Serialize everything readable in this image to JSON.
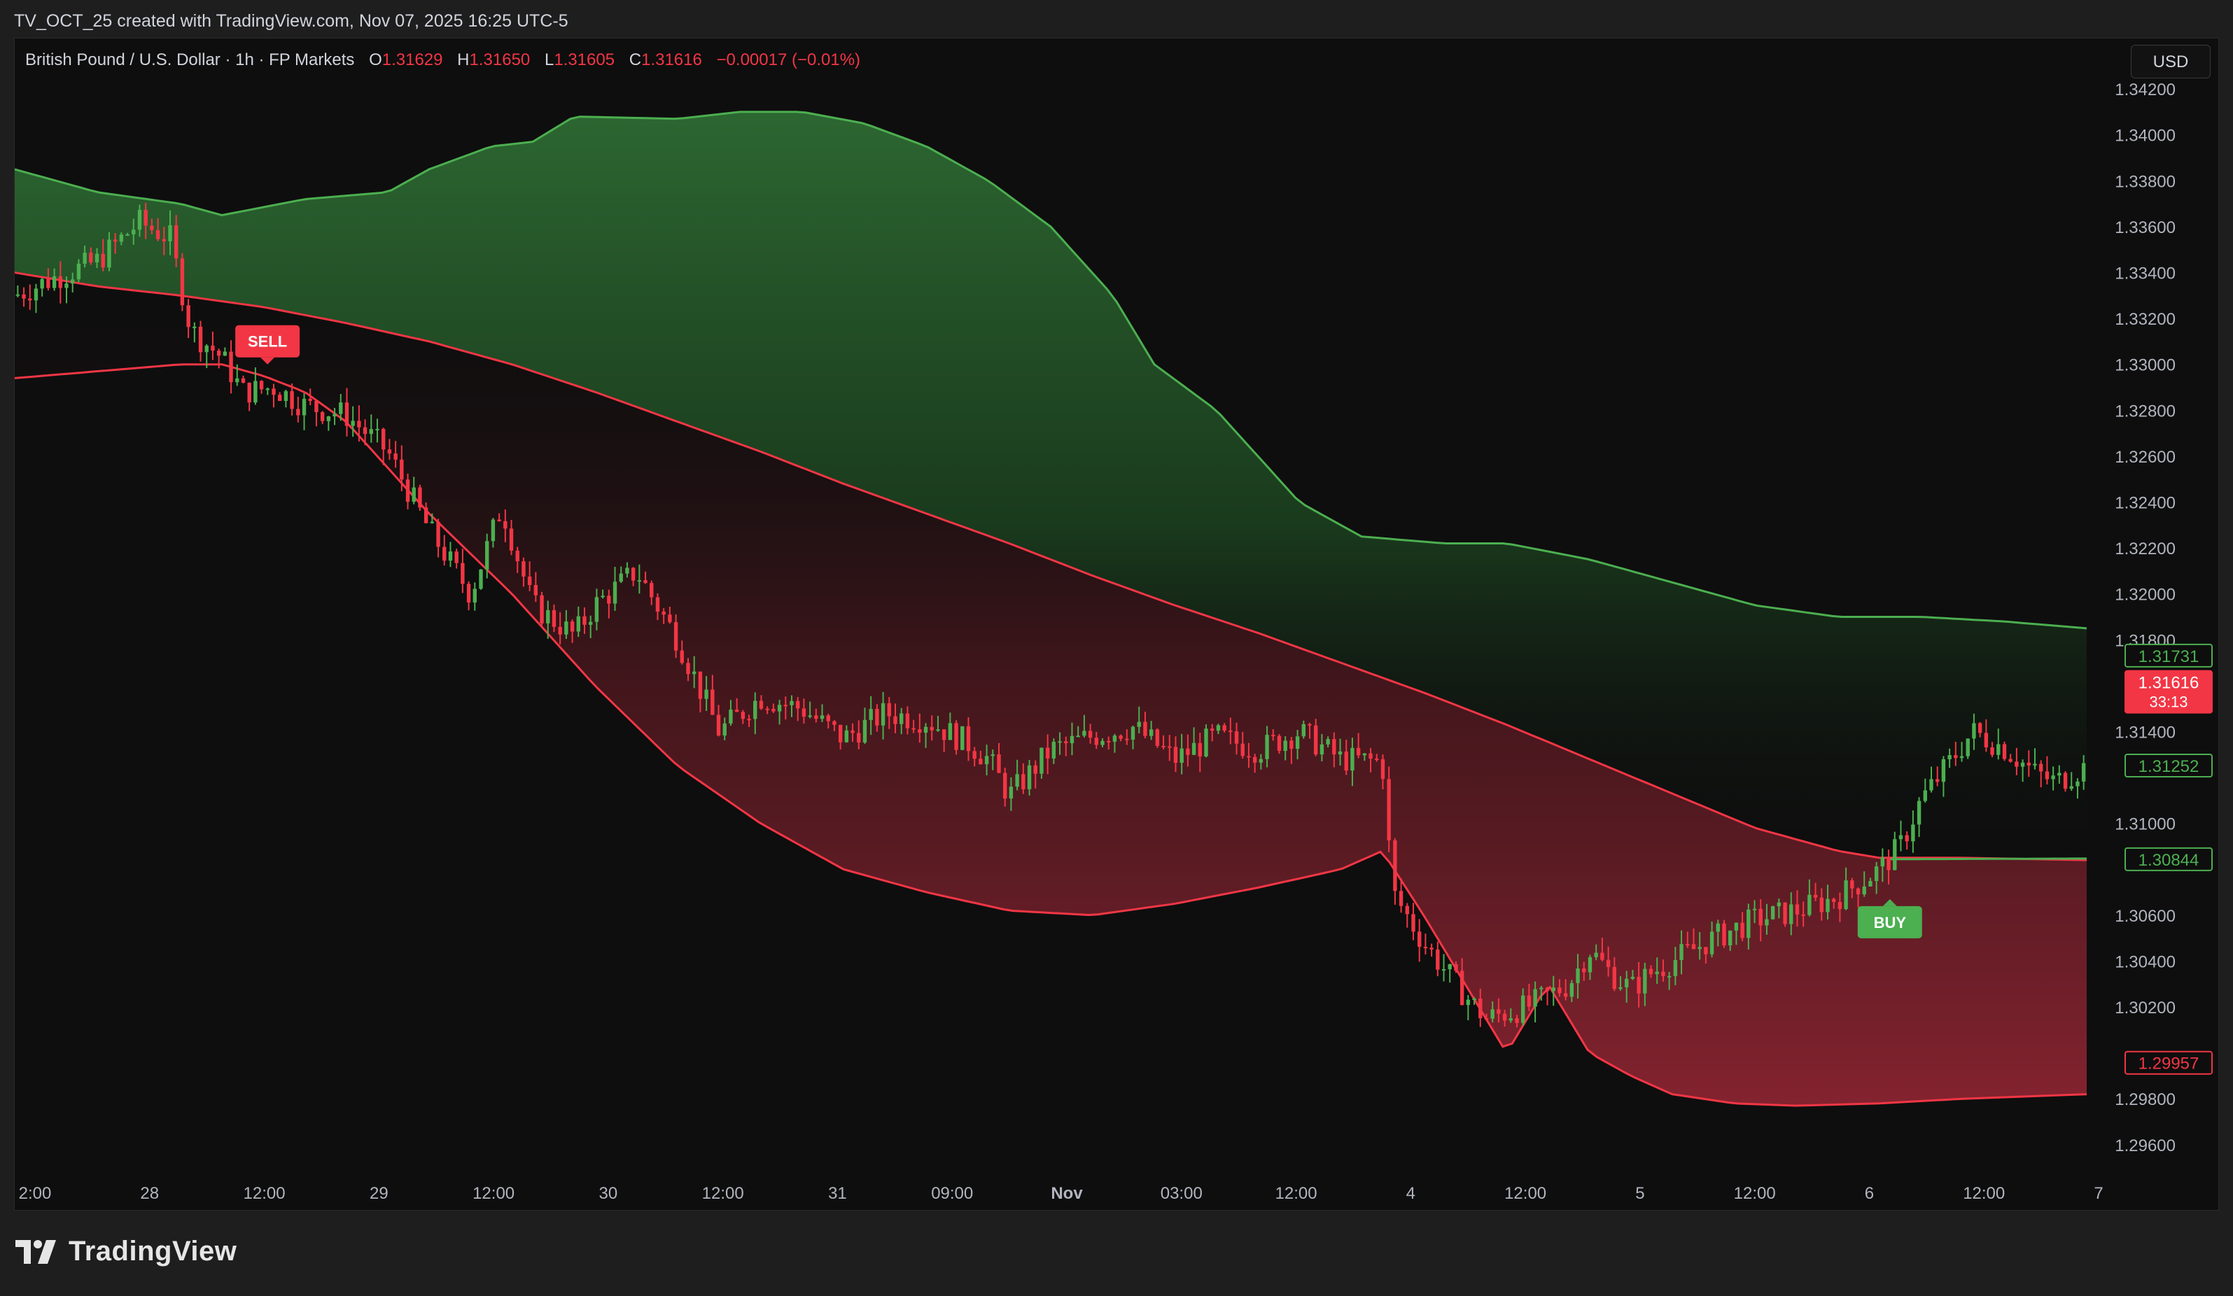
{
  "header": {
    "credit": "TV_OCT_25 created with TradingView.com, Nov 07, 2025 16:25 UTC-5"
  },
  "legend": {
    "symbol": "British Pound / U.S. Dollar · 1h · FP Markets",
    "open_label": "O",
    "open": "1.31629",
    "high_label": "H",
    "high": "1.31650",
    "low_label": "L",
    "low": "1.31605",
    "close_label": "C",
    "close": "1.31616",
    "change": "−0.00017 (−0.01%)"
  },
  "currency_button": "USD",
  "footer": {
    "logo_text": "TradingView"
  },
  "colors": {
    "up": "#4caf50",
    "down": "#f23645",
    "upper_band": "#4caf50",
    "lower_band": "#f23645",
    "bg": "#0e0e0e"
  },
  "chart_data": {
    "type": "candlestick",
    "x_labels": [
      "2:00",
      "28",
      "12:00",
      "29",
      "12:00",
      "30",
      "12:00",
      "31",
      "09:00",
      "Nov",
      "03:00",
      "12:00",
      "4",
      "12:00",
      "5",
      "12:00",
      "6",
      "12:00",
      "7"
    ],
    "y_ticks": [
      "1.34200",
      "1.34000",
      "1.33800",
      "1.33600",
      "1.33400",
      "1.33200",
      "1.33000",
      "1.32800",
      "1.32600",
      "1.32400",
      "1.32200",
      "1.32000",
      "1.31800",
      "1.31400",
      "1.31000",
      "1.30600",
      "1.30400",
      "1.30200",
      "1.29800",
      "1.29600"
    ],
    "ylim": [
      1.2945,
      1.3442
    ],
    "price_labels": [
      {
        "value": 1.31731,
        "text": "1.31731",
        "kind": "upper"
      },
      {
        "value": 1.31616,
        "text": "1.31616",
        "sub": "33:13",
        "kind": "last"
      },
      {
        "value": 1.31252,
        "text": "1.31252",
        "kind": "upper"
      },
      {
        "value": 1.30844,
        "text": "1.30844",
        "kind": "upper"
      },
      {
        "value": 1.29957,
        "text": "1.29957",
        "kind": "lower"
      }
    ],
    "signals": [
      {
        "label": "SELL",
        "x": 0.122,
        "price": 1.33,
        "kind": "sell"
      },
      {
        "label": "BUY",
        "x": 0.905,
        "price": 1.3067,
        "kind": "buy"
      }
    ],
    "upper_band": [
      [
        0,
        1.3385
      ],
      [
        0.04,
        1.3375
      ],
      [
        0.08,
        1.337
      ],
      [
        0.1,
        1.3365
      ],
      [
        0.14,
        1.3372
      ],
      [
        0.18,
        1.3375
      ],
      [
        0.2,
        1.3385
      ],
      [
        0.23,
        1.3395
      ],
      [
        0.25,
        1.3397
      ],
      [
        0.27,
        1.3408
      ],
      [
        0.32,
        1.3407
      ],
      [
        0.35,
        1.341
      ],
      [
        0.38,
        1.341
      ],
      [
        0.41,
        1.3405
      ],
      [
        0.44,
        1.3395
      ],
      [
        0.47,
        1.338
      ],
      [
        0.5,
        1.336
      ],
      [
        0.53,
        1.333
      ],
      [
        0.55,
        1.33
      ],
      [
        0.58,
        1.328
      ],
      [
        0.6,
        1.326
      ],
      [
        0.62,
        1.324
      ],
      [
        0.65,
        1.3225
      ],
      [
        0.69,
        1.3222
      ],
      [
        0.72,
        1.3222
      ],
      [
        0.76,
        1.3215
      ],
      [
        0.8,
        1.3205
      ],
      [
        0.84,
        1.3195
      ],
      [
        0.88,
        1.319
      ],
      [
        0.92,
        1.319
      ],
      [
        0.96,
        1.3188
      ],
      [
        1,
        1.3185
      ]
    ],
    "mid_line": [
      [
        0,
        1.334
      ],
      [
        0.04,
        1.3334
      ],
      [
        0.08,
        1.333
      ],
      [
        0.12,
        1.3325
      ],
      [
        0.16,
        1.3318
      ],
      [
        0.2,
        1.331
      ],
      [
        0.24,
        1.33
      ],
      [
        0.28,
        1.3288
      ],
      [
        0.32,
        1.3275
      ],
      [
        0.36,
        1.3262
      ],
      [
        0.4,
        1.3248
      ],
      [
        0.44,
        1.3235
      ],
      [
        0.48,
        1.3222
      ],
      [
        0.52,
        1.3208
      ],
      [
        0.56,
        1.3195
      ],
      [
        0.6,
        1.3183
      ],
      [
        0.64,
        1.317
      ],
      [
        0.68,
        1.3157
      ],
      [
        0.72,
        1.3143
      ],
      [
        0.76,
        1.3128
      ],
      [
        0.8,
        1.3113
      ],
      [
        0.84,
        1.3098
      ],
      [
        0.88,
        1.3088
      ],
      [
        0.9,
        1.3085
      ],
      [
        0.94,
        1.3085
      ],
      [
        1,
        1.3084
      ]
    ],
    "lower_band": [
      [
        0,
        1.3294
      ],
      [
        0.04,
        1.3297
      ],
      [
        0.08,
        1.33
      ],
      [
        0.1,
        1.33
      ],
      [
        0.12,
        1.3295
      ],
      [
        0.14,
        1.3288
      ],
      [
        0.16,
        1.3275
      ],
      [
        0.18,
        1.3255
      ],
      [
        0.2,
        1.3235
      ],
      [
        0.24,
        1.32
      ],
      [
        0.28,
        1.316
      ],
      [
        0.32,
        1.3125
      ],
      [
        0.36,
        1.31
      ],
      [
        0.4,
        1.308
      ],
      [
        0.44,
        1.307
      ],
      [
        0.48,
        1.3062
      ],
      [
        0.52,
        1.306
      ],
      [
        0.56,
        1.3065
      ],
      [
        0.6,
        1.3072
      ],
      [
        0.64,
        1.308
      ],
      [
        0.66,
        1.3088
      ],
      [
        0.68,
        1.306
      ],
      [
        0.7,
        1.303
      ],
      [
        0.72,
        1.3
      ],
      [
        0.74,
        1.303
      ],
      [
        0.76,
        1.3
      ],
      [
        0.78,
        1.299
      ],
      [
        0.8,
        1.2982
      ],
      [
        0.83,
        1.2978
      ],
      [
        0.86,
        1.2977
      ],
      [
        0.9,
        1.2978
      ],
      [
        0.94,
        1.298
      ],
      [
        1,
        1.2982
      ]
    ],
    "path": [
      [
        0,
        1.333
      ],
      [
        0.02,
        1.3338
      ],
      [
        0.04,
        1.3345
      ],
      [
        0.06,
        1.3362
      ],
      [
        0.075,
        1.3355
      ],
      [
        0.085,
        1.3315
      ],
      [
        0.1,
        1.3303
      ],
      [
        0.11,
        1.3288
      ],
      [
        0.125,
        1.329
      ],
      [
        0.14,
        1.3282
      ],
      [
        0.16,
        1.3278
      ],
      [
        0.18,
        1.3262
      ],
      [
        0.2,
        1.3228
      ],
      [
        0.22,
        1.32
      ],
      [
        0.235,
        1.3238
      ],
      [
        0.25,
        1.3195
      ],
      [
        0.27,
        1.3182
      ],
      [
        0.28,
        1.3195
      ],
      [
        0.3,
        1.321
      ],
      [
        0.32,
        1.318
      ],
      [
        0.34,
        1.314
      ],
      [
        0.36,
        1.3155
      ],
      [
        0.38,
        1.315
      ],
      [
        0.4,
        1.3137
      ],
      [
        0.42,
        1.3148
      ],
      [
        0.44,
        1.3145
      ],
      [
        0.46,
        1.3135
      ],
      [
        0.47,
        1.3128
      ],
      [
        0.48,
        1.3112
      ],
      [
        0.5,
        1.3132
      ],
      [
        0.52,
        1.3138
      ],
      [
        0.54,
        1.3142
      ],
      [
        0.56,
        1.3128
      ],
      [
        0.58,
        1.3138
      ],
      [
        0.6,
        1.3132
      ],
      [
        0.62,
        1.314
      ],
      [
        0.64,
        1.3128
      ],
      [
        0.66,
        1.3127
      ],
      [
        0.665,
        1.307
      ],
      [
        0.68,
        1.3048
      ],
      [
        0.7,
        1.3025
      ],
      [
        0.71,
        1.3015
      ],
      [
        0.73,
        1.302
      ],
      [
        0.75,
        1.303
      ],
      [
        0.76,
        1.3045
      ],
      [
        0.77,
        1.3035
      ],
      [
        0.78,
        1.3028
      ],
      [
        0.79,
        1.3035
      ],
      [
        0.8,
        1.304
      ],
      [
        0.82,
        1.305
      ],
      [
        0.84,
        1.3058
      ],
      [
        0.86,
        1.3062
      ],
      [
        0.88,
        1.3068
      ],
      [
        0.9,
        1.308
      ],
      [
        0.91,
        1.309
      ],
      [
        0.92,
        1.311
      ],
      [
        0.93,
        1.3122
      ],
      [
        0.945,
        1.314
      ],
      [
        0.96,
        1.3133
      ],
      [
        0.975,
        1.3122
      ],
      [
        0.985,
        1.3118
      ],
      [
        1,
        1.3125
      ]
    ]
  }
}
